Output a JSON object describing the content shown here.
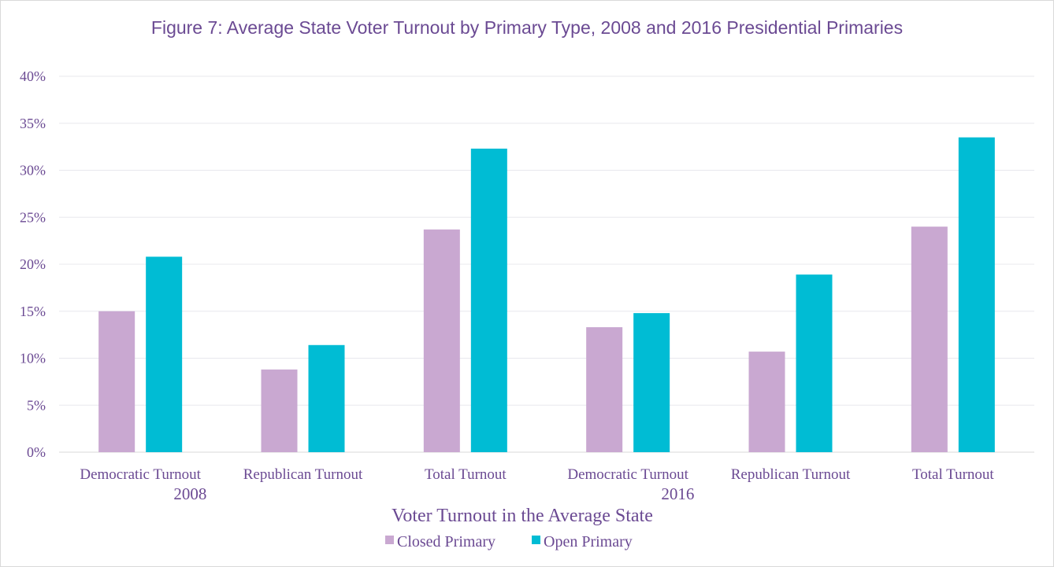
{
  "chart_data": {
    "type": "bar",
    "title": "Figure 7: Average State Voter Turnout  by Primary Type, 2008 and 2016 Presidential Primaries",
    "xlabel": "Voter Turnout in the Average State",
    "ylabel": "",
    "ylim": [
      0,
      40
    ],
    "yticks": [
      "0%",
      "5%",
      "10%",
      "15%",
      "20%",
      "25%",
      "30%",
      "35%",
      "40%"
    ],
    "groups": [
      {
        "label": "2008",
        "categories": [
          "Democratic Turnout",
          "Republican Turnout",
          "Total Turnout"
        ]
      },
      {
        "label": "2016",
        "categories": [
          "Democratic Turnout",
          "Republican Turnout",
          "Total Turnout"
        ]
      }
    ],
    "categories": [
      "Democratic Turnout",
      "Republican Turnout",
      "Total Turnout",
      "Democratic Turnout",
      "Republican Turnout",
      "Total Turnout"
    ],
    "series": [
      {
        "name": "Closed Primary",
        "color": "#c9a8d1",
        "values": [
          15.0,
          8.8,
          23.7,
          13.3,
          10.7,
          24.0
        ]
      },
      {
        "name": "Open Primary",
        "color": "#00bcd4",
        "values": [
          20.8,
          11.4,
          32.3,
          14.8,
          18.9,
          33.5
        ]
      }
    ],
    "legend_position": "bottom",
    "grid": true
  }
}
